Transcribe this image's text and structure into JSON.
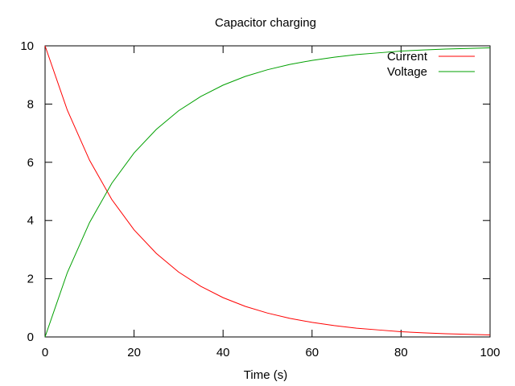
{
  "chart_data": {
    "type": "line",
    "title": "Capacitor charging",
    "xlabel": "Time (s)",
    "ylabel": "",
    "xlim": [
      0,
      100
    ],
    "ylim": [
      0,
      10
    ],
    "xticks": [
      0,
      20,
      40,
      60,
      80,
      100
    ],
    "yticks": [
      0,
      2,
      4,
      6,
      8,
      10
    ],
    "grid": false,
    "legend_position": "top-right",
    "series": [
      {
        "name": "Current",
        "color": "#ff0000",
        "x": [
          0,
          5,
          10,
          15,
          20,
          25,
          30,
          35,
          40,
          45,
          50,
          55,
          60,
          65,
          70,
          75,
          80,
          85,
          90,
          95,
          100
        ],
        "y": [
          10.0,
          7.79,
          6.07,
          4.72,
          3.68,
          2.87,
          2.23,
          1.74,
          1.35,
          1.05,
          0.82,
          0.64,
          0.5,
          0.39,
          0.3,
          0.24,
          0.18,
          0.14,
          0.11,
          0.09,
          0.07
        ]
      },
      {
        "name": "Voltage",
        "color": "#00a000",
        "x": [
          0,
          5,
          10,
          15,
          20,
          25,
          30,
          35,
          40,
          45,
          50,
          55,
          60,
          65,
          70,
          75,
          80,
          85,
          90,
          95,
          100
        ],
        "y": [
          0.0,
          2.21,
          3.93,
          5.28,
          6.32,
          7.13,
          7.77,
          8.26,
          8.65,
          8.95,
          9.18,
          9.36,
          9.5,
          9.61,
          9.7,
          9.76,
          9.82,
          9.86,
          9.89,
          9.91,
          9.93
        ]
      }
    ]
  }
}
